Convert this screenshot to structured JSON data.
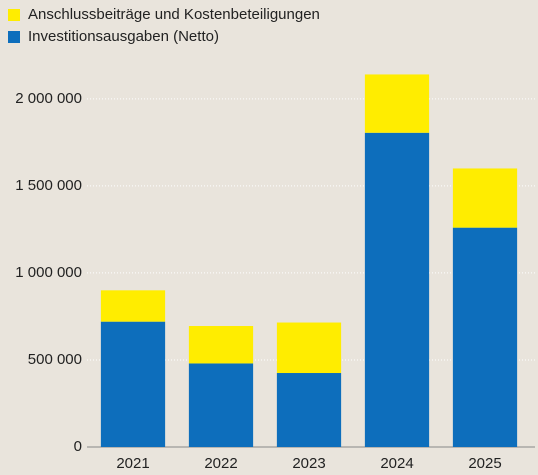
{
  "chart_data": {
    "type": "stacked_bar",
    "categories": [
      "2021",
      "2022",
      "2023",
      "2024",
      "2025"
    ],
    "series": [
      {
        "name": "Investitionsausgaben (Netto)",
        "color": "#0d6ebc",
        "values": [
          720000,
          480000,
          425000,
          1805000,
          1260000
        ]
      },
      {
        "name": "Anschlussbeiträge und Kostenbeteiligungen",
        "color": "#ffed00",
        "values": [
          180000,
          215000,
          290000,
          335000,
          340000
        ]
      }
    ],
    "ylim": [
      0,
      2200000
    ],
    "yticks": [
      0,
      {
        "value": 500000,
        "label": "500 000"
      },
      {
        "value": 1000000,
        "label": "1 000 000"
      },
      {
        "value": 1500000,
        "label": "1 500 000"
      },
      {
        "value": 2000000,
        "label": "2 000 000"
      }
    ],
    "grid": true
  }
}
